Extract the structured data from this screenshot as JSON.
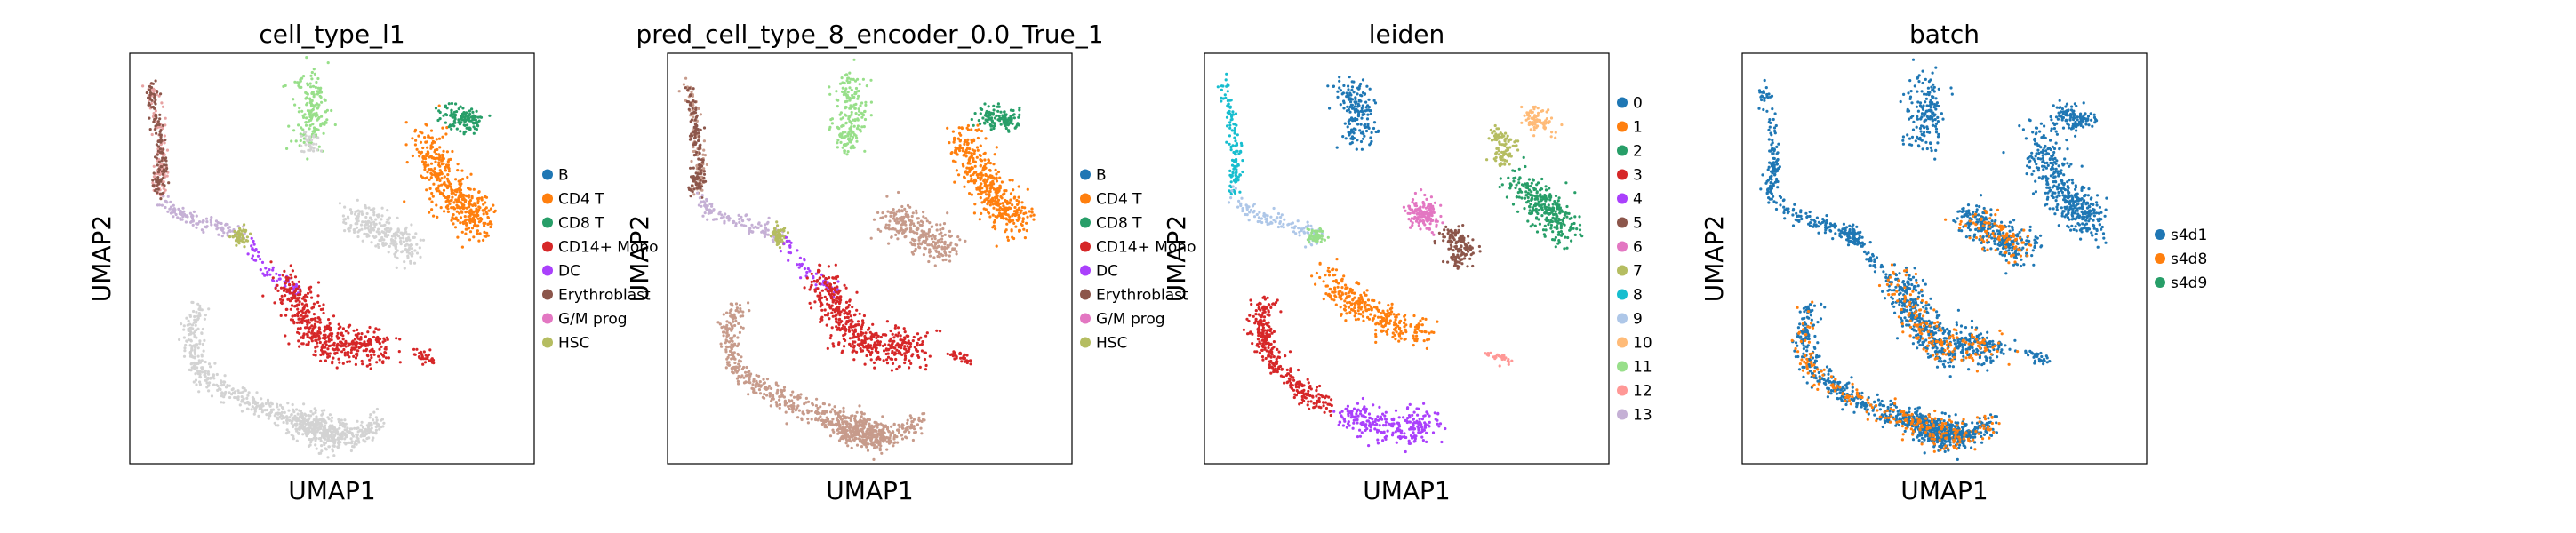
{
  "chart_data": [
    {
      "type": "scatter",
      "title": "cell_type_l1",
      "xlabel": "UMAP1",
      "ylabel": "UMAP2",
      "grid": false,
      "legend_position": "right",
      "legend": [
        {
          "label": "B",
          "color": "#1f77b4"
        },
        {
          "label": "CD4 T",
          "color": "#ff7f0e"
        },
        {
          "label": "CD8 T",
          "color": "#279e68"
        },
        {
          "label": "CD14+ Mono",
          "color": "#d62728"
        },
        {
          "label": "DC",
          "color": "#aa40fc"
        },
        {
          "label": "Erythroblast",
          "color": "#8c564b"
        },
        {
          "label": "G/M prog",
          "color": "#e377c2"
        },
        {
          "label": "HSC",
          "color": "#b5bd61"
        }
      ]
    },
    {
      "type": "scatter",
      "title": "pred_cell_type_8_encoder_0.0_True_1",
      "xlabel": "UMAP1",
      "ylabel": "UMAP2",
      "grid": false,
      "legend_position": "right",
      "legend": [
        {
          "label": "B",
          "color": "#1f77b4"
        },
        {
          "label": "CD4 T",
          "color": "#ff7f0e"
        },
        {
          "label": "CD8 T",
          "color": "#279e68"
        },
        {
          "label": "CD14+ Mono",
          "color": "#d62728"
        },
        {
          "label": "DC",
          "color": "#aa40fc"
        },
        {
          "label": "Erythroblast",
          "color": "#8c564b"
        },
        {
          "label": "G/M prog",
          "color": "#e377c2"
        },
        {
          "label": "HSC",
          "color": "#b5bd61"
        }
      ]
    },
    {
      "type": "scatter",
      "title": "leiden",
      "xlabel": "UMAP1",
      "ylabel": "UMAP2",
      "grid": false,
      "legend_position": "right",
      "legend": [
        {
          "label": "0",
          "color": "#1f77b4"
        },
        {
          "label": "1",
          "color": "#ff7f0e"
        },
        {
          "label": "2",
          "color": "#279e68"
        },
        {
          "label": "3",
          "color": "#d62728"
        },
        {
          "label": "4",
          "color": "#aa40fc"
        },
        {
          "label": "5",
          "color": "#8c564b"
        },
        {
          "label": "6",
          "color": "#e377c2"
        },
        {
          "label": "7",
          "color": "#b5bd61"
        },
        {
          "label": "8",
          "color": "#17becf"
        },
        {
          "label": "9",
          "color": "#aec7e8"
        },
        {
          "label": "10",
          "color": "#ffbb78"
        },
        {
          "label": "11",
          "color": "#98df8a"
        },
        {
          "label": "12",
          "color": "#ff9896"
        },
        {
          "label": "13",
          "color": "#c5b0d5"
        }
      ]
    },
    {
      "type": "scatter",
      "title": "batch",
      "xlabel": "UMAP1",
      "ylabel": "UMAP2",
      "grid": false,
      "legend_position": "right",
      "legend": [
        {
          "label": "s4d1",
          "color": "#1f77b4"
        },
        {
          "label": "s4d8",
          "color": "#ff7f0e"
        },
        {
          "label": "s4d9",
          "color": "#279e68"
        }
      ]
    }
  ]
}
